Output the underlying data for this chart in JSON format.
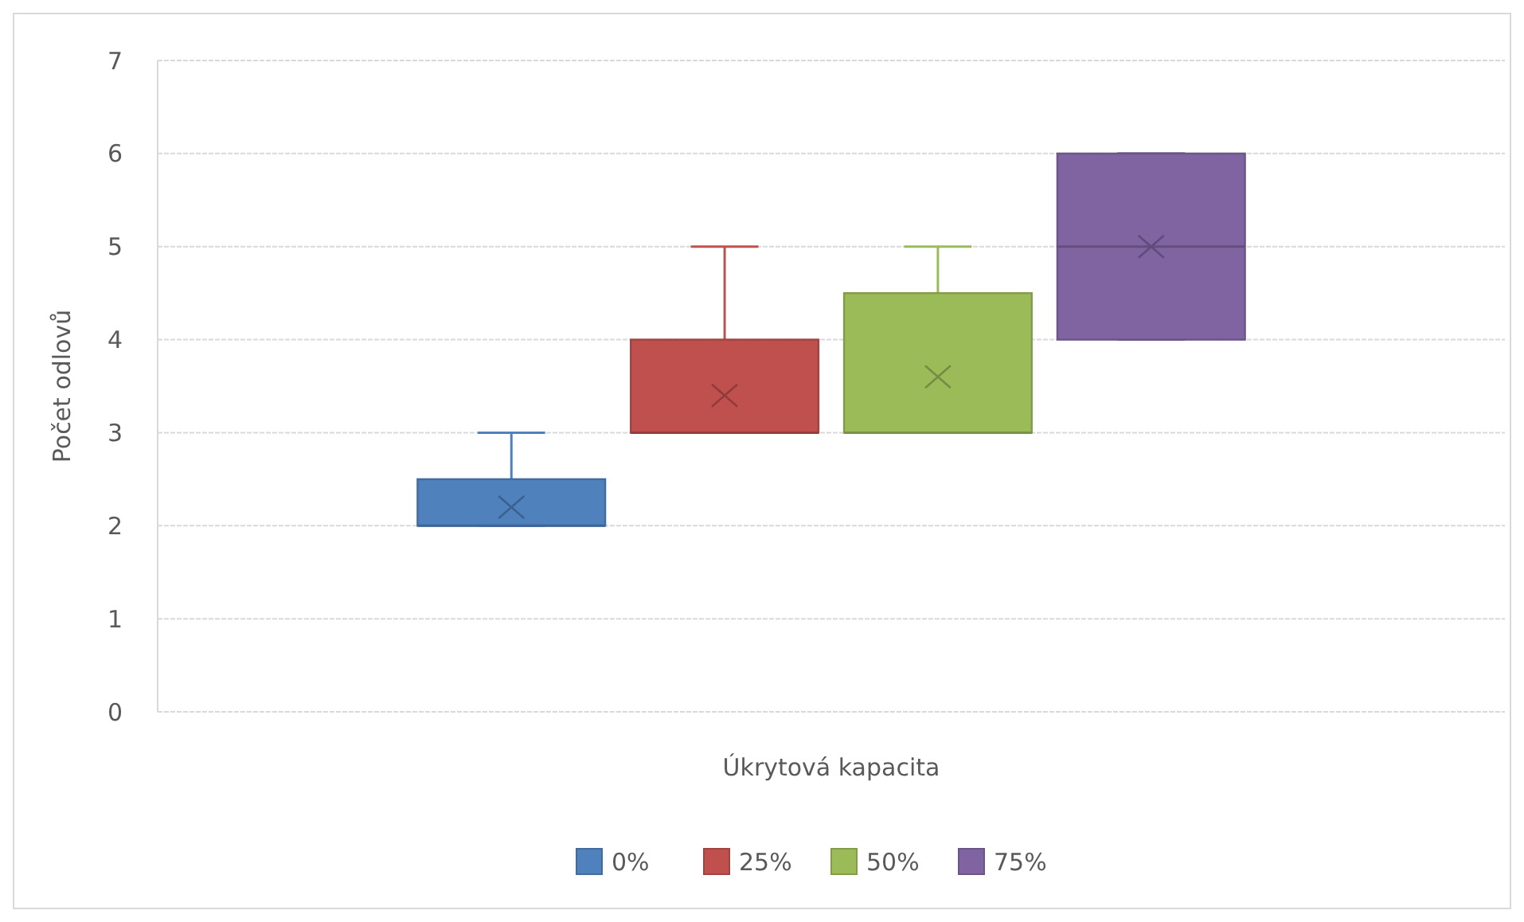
{
  "chart_data": {
    "type": "box",
    "xlabel": "Úkrytová kapacita",
    "ylabel": "Počet odlovů",
    "categories": [
      null
    ],
    "ylim": [
      0,
      7
    ],
    "yticks": [
      0,
      1,
      2,
      3,
      4,
      5,
      6,
      7
    ],
    "grid": "y",
    "legend": "bottom",
    "series": [
      {
        "name": "0%",
        "color": "#4f81bd",
        "boxes": [
          {
            "low": 2,
            "q1": 2,
            "median": 2,
            "q3": 2.5,
            "high": 3,
            "mean": 2.2
          }
        ]
      },
      {
        "name": "25%",
        "color": "#c0504d",
        "boxes": [
          {
            "low": 3,
            "q1": 3,
            "median": 3,
            "q3": 4,
            "high": 5,
            "mean": 3.4
          }
        ]
      },
      {
        "name": "50%",
        "color": "#9bbb59",
        "boxes": [
          {
            "low": 3,
            "q1": 3,
            "median": 3,
            "q3": 4.5,
            "high": 5,
            "mean": 3.6
          }
        ]
      },
      {
        "name": "75%",
        "color": "#8064a2",
        "boxes": [
          {
            "low": 4,
            "q1": 4,
            "median": 5,
            "q3": 6,
            "high": 6,
            "mean": 5
          }
        ]
      }
    ]
  }
}
